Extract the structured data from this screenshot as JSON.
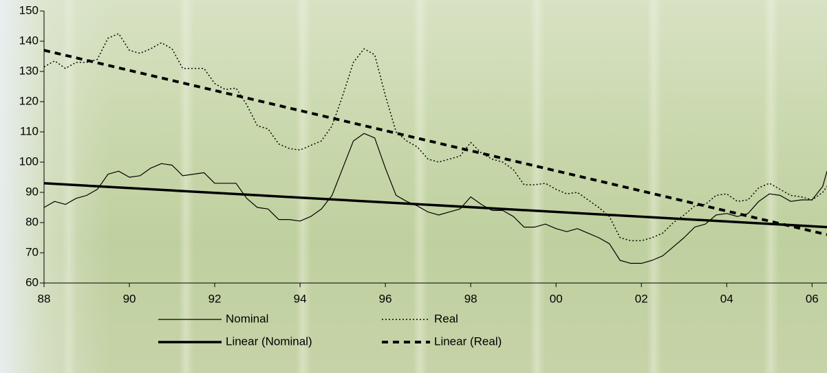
{
  "chart_data": {
    "type": "line",
    "xlim": [
      1988,
      2006.35
    ],
    "ylim": [
      60,
      150
    ],
    "xticks": [
      {
        "value": 1988,
        "label": "88"
      },
      {
        "value": 1990,
        "label": "90"
      },
      {
        "value": 1992,
        "label": "92"
      },
      {
        "value": 1994,
        "label": "94"
      },
      {
        "value": 1996,
        "label": "96"
      },
      {
        "value": 1998,
        "label": "98"
      },
      {
        "value": 2000,
        "label": "00"
      },
      {
        "value": 2002,
        "label": "02"
      },
      {
        "value": 2004,
        "label": "04"
      },
      {
        "value": 2006,
        "label": "06"
      }
    ],
    "yticks": [
      60,
      70,
      80,
      90,
      100,
      110,
      120,
      130,
      140,
      150
    ],
    "legend": "bottom",
    "series": [
      {
        "name": "Nominal",
        "color": "#000000",
        "line_style": "solid",
        "width": 1.2,
        "x": [
          1988,
          1988.25,
          1988.5,
          1988.75,
          1989,
          1989.25,
          1989.5,
          1989.75,
          1990,
          1990.25,
          1990.5,
          1990.75,
          1991,
          1991.25,
          1991.5,
          1991.75,
          1992,
          1992.25,
          1992.5,
          1992.75,
          1993,
          1993.25,
          1993.5,
          1993.75,
          1994,
          1994.25,
          1994.5,
          1994.75,
          1995,
          1995.25,
          1995.5,
          1995.75,
          1996,
          1996.25,
          1996.5,
          1996.75,
          1997,
          1997.25,
          1997.5,
          1997.75,
          1998,
          1998.25,
          1998.5,
          1998.75,
          1999,
          1999.25,
          1999.5,
          1999.75,
          2000,
          2000.25,
          2000.5,
          2000.75,
          2001,
          2001.25,
          2001.5,
          2001.75,
          2002,
          2002.25,
          2002.5,
          2002.75,
          2003,
          2003.25,
          2003.5,
          2003.75,
          2004,
          2004.25,
          2004.5,
          2004.75,
          2005,
          2005.25,
          2005.5,
          2005.75,
          2006,
          2006.25,
          2006.35
        ],
        "values": [
          85,
          87,
          86,
          88,
          89,
          91,
          96,
          97,
          95,
          95.5,
          98,
          99.5,
          99,
          95.5,
          96,
          96.5,
          93,
          93,
          93,
          88,
          85,
          84.5,
          81,
          81,
          80.5,
          82,
          84.5,
          89,
          98,
          107,
          109.5,
          108,
          98,
          89,
          87,
          85.5,
          83.5,
          82.5,
          83.5,
          84.5,
          88.5,
          86,
          84,
          84,
          82,
          78.5,
          78.5,
          79.5,
          78,
          77,
          78,
          76.5,
          75,
          73,
          67.5,
          66.5,
          66.5,
          67.5,
          69,
          72,
          75,
          78.5,
          79.5,
          82.5,
          83,
          82,
          83,
          87,
          89.5,
          89,
          87,
          87.5,
          87.5,
          92,
          97
        ]
      },
      {
        "name": "Real",
        "color": "#000000",
        "line_style": "dotted",
        "width": 1.5,
        "x": [
          1988,
          1988.25,
          1988.5,
          1988.75,
          1989,
          1989.25,
          1989.5,
          1989.75,
          1990,
          1990.25,
          1990.5,
          1990.75,
          1991,
          1991.25,
          1991.5,
          1991.75,
          1992,
          1992.25,
          1992.5,
          1992.75,
          1993,
          1993.25,
          1993.5,
          1993.75,
          1994,
          1994.25,
          1994.5,
          1994.75,
          1995,
          1995.25,
          1995.5,
          1995.75,
          1996,
          1996.25,
          1996.5,
          1996.75,
          1997,
          1997.25,
          1997.5,
          1997.75,
          1998,
          1998.25,
          1998.5,
          1998.75,
          1999,
          1999.25,
          1999.5,
          1999.75,
          2000,
          2000.25,
          2000.5,
          2000.75,
          2001,
          2001.25,
          2001.5,
          2001.75,
          2002,
          2002.25,
          2002.5,
          2002.75,
          2003,
          2003.25,
          2003.5,
          2003.75,
          2004,
          2004.25,
          2004.5,
          2004.75,
          2005,
          2005.25,
          2005.5,
          2005.75,
          2006,
          2006.25,
          2006.35
        ],
        "values": [
          131.5,
          133.5,
          131,
          133,
          133,
          134,
          141,
          142.5,
          137,
          136,
          137.5,
          139.5,
          137.5,
          131,
          131,
          131,
          126,
          124,
          124.5,
          119,
          112,
          111,
          106,
          104.5,
          104,
          105.5,
          107,
          112,
          122,
          133,
          137.5,
          135.5,
          122,
          110,
          107,
          105,
          101,
          100,
          101,
          102,
          106.5,
          103,
          101,
          100,
          97.5,
          92.5,
          92.5,
          93,
          91,
          89.5,
          90,
          87.5,
          85,
          82,
          75,
          74,
          74,
          75,
          76.5,
          80,
          82.5,
          85.5,
          86,
          89,
          89.5,
          87,
          87.5,
          91.5,
          93,
          91,
          89,
          88.5,
          87.5,
          90,
          92
        ]
      },
      {
        "name": "Linear (Nominal)",
        "color": "#000000",
        "line_style": "solid",
        "width": 3.5,
        "x": [
          1988,
          2006.35
        ],
        "values": [
          93,
          78.5
        ]
      },
      {
        "name": "Linear (Real)",
        "color": "#000000",
        "line_style": "dashed",
        "width": 4,
        "x": [
          1988,
          2006.35
        ],
        "values": [
          137,
          76
        ]
      }
    ]
  }
}
